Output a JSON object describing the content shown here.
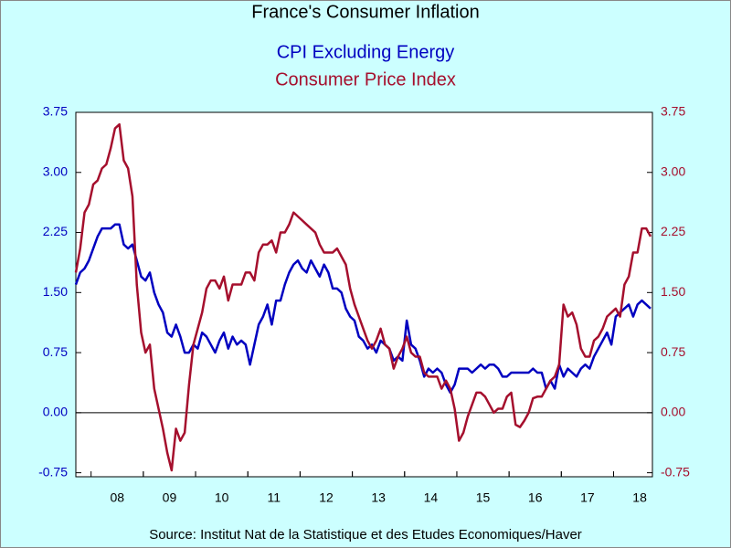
{
  "chart_data": {
    "type": "line",
    "title": "France's  Consumer Inflation",
    "source": "Source:  Institut Nat de la Statistique et des Etudes Economiques/Haver",
    "categories": [
      null,
      null,
      null,
      null,
      null,
      null,
      null,
      null,
      null,
      "08",
      null,
      null,
      null,
      null,
      null,
      null,
      null,
      null,
      null,
      null,
      null,
      "09",
      null,
      null,
      null,
      null,
      null,
      null,
      null,
      null,
      null,
      null,
      null,
      "10",
      null,
      null,
      null,
      null,
      null,
      null,
      null,
      null,
      null,
      null,
      null,
      "11",
      null,
      null,
      null,
      null,
      null,
      null,
      null,
      null,
      null,
      null,
      null,
      "12",
      null,
      null,
      null,
      null,
      null,
      null,
      null,
      null,
      null,
      null,
      null,
      "13",
      null,
      null,
      null,
      null,
      null,
      null,
      null,
      null,
      null,
      null,
      null,
      "14",
      null,
      null,
      null,
      null,
      null,
      null,
      null,
      null,
      null,
      null,
      null,
      "15",
      null,
      null,
      null,
      null,
      null,
      null,
      null,
      null,
      null,
      null,
      null,
      "16",
      null,
      null,
      null,
      null,
      null,
      null,
      null,
      null,
      null,
      null,
      null,
      "17",
      null,
      null,
      null,
      null,
      null,
      null,
      null,
      null,
      null,
      null,
      null,
      "18",
      null,
      null,
      null
    ],
    "series": [
      {
        "name": "CPI Excluding Energy",
        "color": "#0000c0",
        "axis": "y",
        "values": [
          1.6,
          1.75,
          1.8,
          1.9,
          2.05,
          2.2,
          2.3,
          2.3,
          2.3,
          2.35,
          2.35,
          2.1,
          2.05,
          2.1,
          1.9,
          1.7,
          1.65,
          1.75,
          1.5,
          1.35,
          1.25,
          1.0,
          0.95,
          1.1,
          0.95,
          0.75,
          0.75,
          0.85,
          0.8,
          1.0,
          0.95,
          0.85,
          0.75,
          0.9,
          1.0,
          0.8,
          0.95,
          0.85,
          0.9,
          0.85,
          0.6,
          0.85,
          1.1,
          1.2,
          1.35,
          1.1,
          1.4,
          1.4,
          1.6,
          1.75,
          1.85,
          1.9,
          1.8,
          1.75,
          1.9,
          1.8,
          1.7,
          1.85,
          1.75,
          1.55,
          1.55,
          1.5,
          1.3,
          1.2,
          1.15,
          0.95,
          0.9,
          0.8,
          0.85,
          0.75,
          0.9,
          0.85,
          0.8,
          0.65,
          0.7,
          0.65,
          1.15,
          0.85,
          0.8,
          0.65,
          0.45,
          0.55,
          0.5,
          0.55,
          0.5,
          0.35,
          0.25,
          0.35,
          0.55,
          0.55,
          0.55,
          0.5,
          0.55,
          0.6,
          0.55,
          0.6,
          0.6,
          0.55,
          0.45,
          0.45,
          0.5,
          0.5,
          0.5,
          0.5,
          0.5,
          0.55,
          0.5,
          0.5,
          0.3,
          0.4,
          0.3,
          0.6,
          0.45,
          0.55,
          0.5,
          0.45,
          0.55,
          0.6,
          0.55,
          0.7,
          0.8,
          0.9,
          1.0,
          0.85,
          1.2,
          1.25,
          1.3,
          1.35,
          1.2,
          1.35,
          1.4,
          1.35,
          1.3
        ]
      },
      {
        "name": "Consumer Price Index",
        "color": "#a50f2d",
        "axis": "y2",
        "values": [
          1.75,
          2.05,
          2.5,
          2.6,
          2.85,
          2.9,
          3.05,
          3.1,
          3.3,
          3.55,
          3.6,
          3.15,
          3.05,
          2.7,
          1.6,
          1.0,
          0.75,
          0.85,
          0.3,
          0.05,
          -0.2,
          -0.5,
          -0.72,
          -0.2,
          -0.35,
          -0.25,
          0.35,
          0.85,
          1.05,
          1.25,
          1.55,
          1.65,
          1.65,
          1.55,
          1.7,
          1.4,
          1.6,
          1.6,
          1.6,
          1.75,
          1.75,
          1.65,
          2.0,
          2.1,
          2.1,
          2.15,
          2.0,
          2.25,
          2.25,
          2.35,
          2.5,
          2.45,
          2.4,
          2.35,
          2.3,
          2.25,
          2.1,
          2.0,
          2.0,
          2.0,
          2.05,
          1.95,
          1.85,
          1.55,
          1.35,
          1.2,
          1.05,
          0.9,
          0.8,
          0.9,
          1.05,
          0.85,
          0.8,
          0.55,
          0.7,
          0.8,
          0.95,
          0.75,
          0.7,
          0.7,
          0.5,
          0.45,
          0.45,
          0.45,
          0.3,
          0.4,
          0.3,
          0.05,
          -0.35,
          -0.25,
          -0.05,
          0.1,
          0.25,
          0.25,
          0.2,
          0.1,
          0.0,
          0.05,
          0.05,
          0.2,
          0.25,
          -0.15,
          -0.18,
          -0.1,
          0.0,
          0.18,
          0.2,
          0.2,
          0.3,
          0.4,
          0.45,
          0.6,
          1.35,
          1.2,
          1.25,
          1.1,
          0.8,
          0.7,
          0.7,
          0.9,
          0.95,
          1.05,
          1.2,
          1.25,
          1.3,
          1.2,
          1.6,
          1.7,
          2.0,
          2.0,
          2.3,
          2.3,
          2.2
        ]
      }
    ],
    "ylim": [
      -0.8,
      3.75
    ],
    "yticks": [
      {
        "value": -0.75,
        "label": "-0.75"
      },
      0.75,
      {
        "value": 0,
        "label": "0.00"
      },
      {
        "value": 1.5,
        "label": "1.50"
      },
      {
        "value": 2.25,
        "label": "2.25"
      },
      {
        "value": 3,
        "label": "3.00"
      },
      3.75
    ],
    "y2lim": [
      -0.8,
      3.75
    ],
    "y2ticks": [
      {
        "value": -0.75,
        "label": "-0.75"
      },
      0.75,
      {
        "value": 0,
        "label": "0.00"
      },
      {
        "value": 1.5,
        "label": "1.50"
      },
      {
        "value": 2.25,
        "label": "2.25"
      },
      {
        "value": 3,
        "label": "3.00"
      },
      3.75
    ],
    "zero_line": true
  }
}
